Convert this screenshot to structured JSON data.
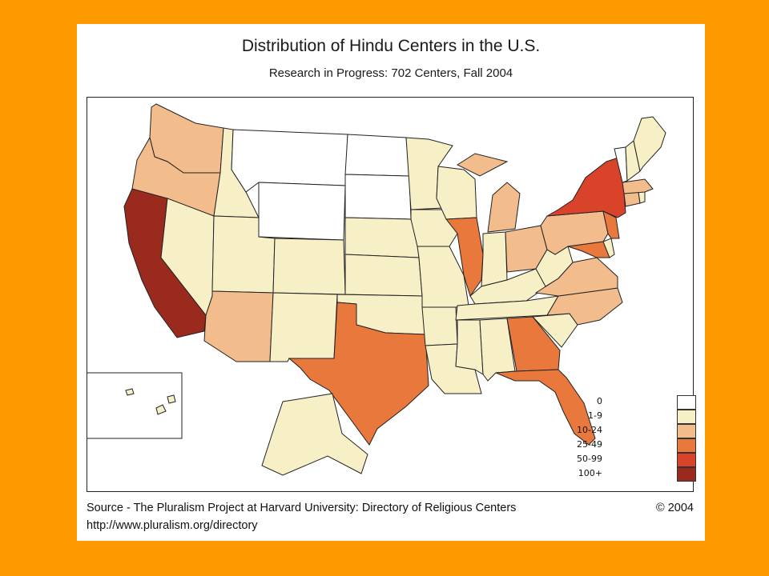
{
  "slide": {
    "title": "Distribution of Hindu Centers in the U.S.",
    "subtitle": "Research in Progress: 702 Centers, Fall 2004",
    "source": "Source - The Pluralism Project at Harvard University: Directory of Religious Centers",
    "url": "http://www.pluralism.org/directory",
    "copyright": "© 2004"
  },
  "colors": {
    "background": "#FF9900",
    "border": "#222222"
  },
  "legend": [
    {
      "label": "0",
      "color": "#FFFFFF"
    },
    {
      "label": "1-9",
      "color": "#F7EFC6"
    },
    {
      "label": "10-24",
      "color": "#F2BC8C"
    },
    {
      "label": "25-49",
      "color": "#E8783C"
    },
    {
      "label": "50-99",
      "color": "#D8432A"
    },
    {
      "label": "100+",
      "color": "#9A2A1E"
    }
  ],
  "states": [
    {
      "name": "WA",
      "bin": "10-24"
    },
    {
      "name": "OR",
      "bin": "10-24"
    },
    {
      "name": "CA",
      "bin": "100+"
    },
    {
      "name": "NV",
      "bin": "1-9"
    },
    {
      "name": "ID",
      "bin": "1-9"
    },
    {
      "name": "MT",
      "bin": "0"
    },
    {
      "name": "WY",
      "bin": "0"
    },
    {
      "name": "UT",
      "bin": "1-9"
    },
    {
      "name": "AZ",
      "bin": "10-24"
    },
    {
      "name": "CO",
      "bin": "1-9"
    },
    {
      "name": "NM",
      "bin": "1-9"
    },
    {
      "name": "ND",
      "bin": "0"
    },
    {
      "name": "SD",
      "bin": "0"
    },
    {
      "name": "NE",
      "bin": "1-9"
    },
    {
      "name": "KS",
      "bin": "1-9"
    },
    {
      "name": "OK",
      "bin": "1-9"
    },
    {
      "name": "TX",
      "bin": "25-49"
    },
    {
      "name": "MN",
      "bin": "1-9"
    },
    {
      "name": "IA",
      "bin": "1-9"
    },
    {
      "name": "MO",
      "bin": "1-9"
    },
    {
      "name": "AR",
      "bin": "1-9"
    },
    {
      "name": "LA",
      "bin": "1-9"
    },
    {
      "name": "WI",
      "bin": "1-9"
    },
    {
      "name": "IL",
      "bin": "25-49"
    },
    {
      "name": "MI",
      "bin": "10-24"
    },
    {
      "name": "IN",
      "bin": "1-9"
    },
    {
      "name": "OH",
      "bin": "10-24"
    },
    {
      "name": "KY",
      "bin": "1-9"
    },
    {
      "name": "TN",
      "bin": "1-9"
    },
    {
      "name": "MS",
      "bin": "1-9"
    },
    {
      "name": "AL",
      "bin": "1-9"
    },
    {
      "name": "GA",
      "bin": "25-49"
    },
    {
      "name": "FL",
      "bin": "25-49"
    },
    {
      "name": "SC",
      "bin": "1-9"
    },
    {
      "name": "NC",
      "bin": "10-24"
    },
    {
      "name": "VA",
      "bin": "10-24"
    },
    {
      "name": "WV",
      "bin": "1-9"
    },
    {
      "name": "MD",
      "bin": "25-49"
    },
    {
      "name": "DE",
      "bin": "1-9"
    },
    {
      "name": "PA",
      "bin": "10-24"
    },
    {
      "name": "NJ",
      "bin": "25-49"
    },
    {
      "name": "NY",
      "bin": "50-99"
    },
    {
      "name": "CT",
      "bin": "10-24"
    },
    {
      "name": "RI",
      "bin": "1-9"
    },
    {
      "name": "MA",
      "bin": "10-24"
    },
    {
      "name": "VT",
      "bin": "0"
    },
    {
      "name": "NH",
      "bin": "1-9"
    },
    {
      "name": "ME",
      "bin": "1-9"
    },
    {
      "name": "AK",
      "bin": "1-9"
    },
    {
      "name": "HI",
      "bin": "1-9"
    }
  ]
}
